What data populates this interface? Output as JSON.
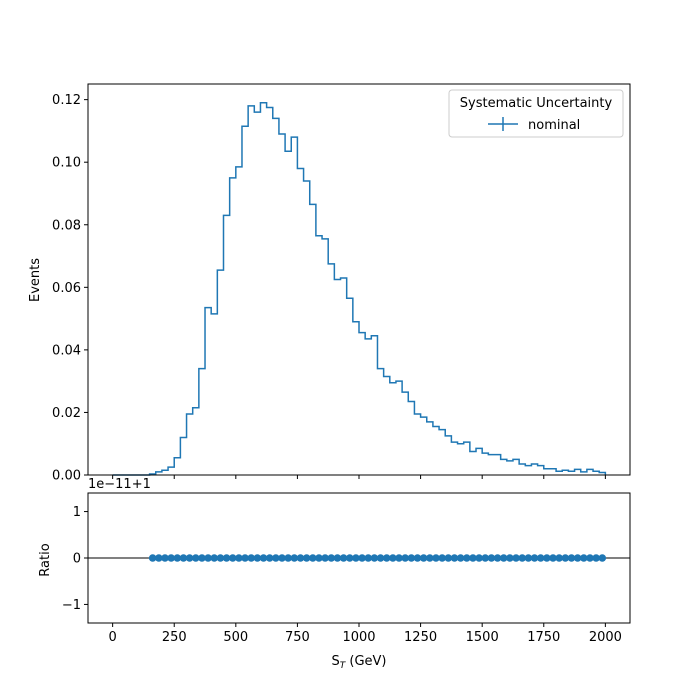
{
  "chart_data": [
    {
      "type": "step",
      "panel": "main",
      "xlabel_main": "S",
      "xlabel_sub": "T",
      "xlabel_unit": " (GeV)",
      "ylabel": "Events",
      "xlim": [
        -100,
        2100
      ],
      "ylim": [
        0,
        0.125
      ],
      "x_ticks": [
        0,
        250,
        500,
        750,
        1000,
        1250,
        1500,
        1750,
        2000
      ],
      "y_ticks": [
        0.0,
        0.02,
        0.04,
        0.06,
        0.08,
        0.1,
        0.12
      ],
      "y_tick_labels": [
        "0.00",
        "0.02",
        "0.04",
        "0.06",
        "0.08",
        "0.10",
        "0.12"
      ],
      "legend_title": "Systematic Uncertainty",
      "legend_position": "top-right",
      "color": "#1f77b4",
      "series": [
        {
          "name": "nominal",
          "bin_edges": [
            0,
            25,
            50,
            75,
            100,
            125,
            150,
            175,
            200,
            225,
            250,
            275,
            300,
            325,
            350,
            375,
            400,
            425,
            450,
            475,
            500,
            525,
            550,
            575,
            600,
            625,
            650,
            675,
            700,
            725,
            750,
            775,
            800,
            825,
            850,
            875,
            900,
            925,
            950,
            975,
            1000,
            1025,
            1050,
            1075,
            1100,
            1125,
            1150,
            1175,
            1200,
            1225,
            1250,
            1275,
            1300,
            1325,
            1350,
            1375,
            1400,
            1425,
            1450,
            1475,
            1500,
            1525,
            1550,
            1575,
            1600,
            1625,
            1650,
            1675,
            1700,
            1725,
            1750,
            1775,
            1800,
            1825,
            1850,
            1875,
            1900,
            1925,
            1950,
            1975,
            2000
          ],
          "values": [
            0,
            0,
            0,
            0,
            0,
            0,
            0.0003,
            0.001,
            0.0015,
            0.0025,
            0.0055,
            0.012,
            0.0195,
            0.0215,
            0.034,
            0.0535,
            0.0515,
            0.0655,
            0.083,
            0.095,
            0.0985,
            0.1115,
            0.118,
            0.116,
            0.119,
            0.1175,
            0.114,
            0.109,
            0.1035,
            0.108,
            0.098,
            0.094,
            0.0865,
            0.0765,
            0.0755,
            0.0675,
            0.0625,
            0.063,
            0.0565,
            0.049,
            0.0455,
            0.0435,
            0.0445,
            0.034,
            0.0315,
            0.0295,
            0.03,
            0.0265,
            0.0235,
            0.0195,
            0.0185,
            0.017,
            0.0155,
            0.0145,
            0.0125,
            0.0105,
            0.01,
            0.0105,
            0.0075,
            0.0085,
            0.007,
            0.0065,
            0.0065,
            0.005,
            0.0045,
            0.005,
            0.0035,
            0.003,
            0.0035,
            0.003,
            0.002,
            0.002,
            0.0012,
            0.0015,
            0.0012,
            0.0018,
            0.001,
            0.0018,
            0.0012,
            0.0008,
            0
          ]
        }
      ]
    },
    {
      "type": "scatter",
      "panel": "ratio",
      "ylabel": "Ratio",
      "offset_text": "1e−11+1",
      "ylim": [
        -1.4,
        1.4
      ],
      "y_ticks": [
        -1,
        0,
        1
      ],
      "y_tick_labels": [
        "−1",
        "0",
        "1"
      ],
      "reference_line": 0,
      "color": "#1f77b4",
      "x": [
        162.5,
        187.5,
        212.5,
        237.5,
        262.5,
        287.5,
        312.5,
        337.5,
        362.5,
        387.5,
        412.5,
        437.5,
        462.5,
        487.5,
        512.5,
        537.5,
        562.5,
        587.5,
        612.5,
        637.5,
        662.5,
        687.5,
        712.5,
        737.5,
        762.5,
        787.5,
        812.5,
        837.5,
        862.5,
        887.5,
        912.5,
        937.5,
        962.5,
        987.5,
        1012.5,
        1037.5,
        1062.5,
        1087.5,
        1112.5,
        1137.5,
        1162.5,
        1187.5,
        1212.5,
        1237.5,
        1262.5,
        1287.5,
        1312.5,
        1337.5,
        1362.5,
        1387.5,
        1412.5,
        1437.5,
        1462.5,
        1487.5,
        1512.5,
        1537.5,
        1562.5,
        1587.5,
        1612.5,
        1637.5,
        1662.5,
        1687.5,
        1712.5,
        1737.5,
        1762.5,
        1787.5,
        1812.5,
        1837.5,
        1862.5,
        1887.5,
        1912.5,
        1937.5,
        1962.5,
        1987.5
      ],
      "y": [
        0,
        0,
        0,
        0,
        0,
        0,
        0,
        0,
        0,
        0,
        0,
        0,
        0,
        0,
        0,
        0,
        0,
        0,
        0,
        0,
        0,
        0,
        0,
        0,
        0,
        0,
        0,
        0,
        0,
        0,
        0,
        0,
        0,
        0,
        0,
        0,
        0,
        0,
        0,
        0,
        0,
        0,
        0,
        0,
        0,
        0,
        0,
        0,
        0,
        0,
        0,
        0,
        0,
        0,
        0,
        0,
        0,
        0,
        0,
        0,
        0,
        0,
        0,
        0,
        0,
        0,
        0,
        0,
        0,
        0,
        0,
        0,
        0,
        0
      ]
    }
  ]
}
